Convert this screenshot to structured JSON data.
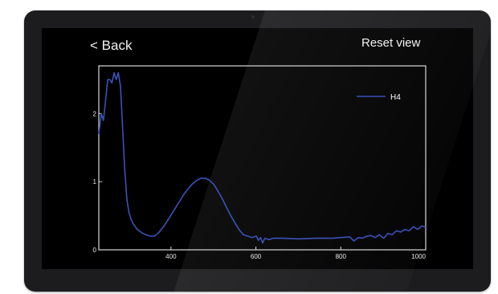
{
  "nav": {
    "back_label": "< Back",
    "reset_label": "Reset view"
  },
  "colors": {
    "line": "#3a52b8",
    "axis": "#d8d8d8",
    "background": "#000000"
  },
  "chart_data": {
    "type": "line",
    "title": "",
    "xlabel": "",
    "ylabel": "",
    "xlim": [
      230,
      1000
    ],
    "ylim": [
      0,
      2.7
    ],
    "x_ticks": [
      "400",
      "600",
      "800",
      "1000"
    ],
    "x_tick_values": [
      400,
      600,
      800,
      1000
    ],
    "y_ticks": [
      "0",
      "1",
      "2"
    ],
    "y_tick_values": [
      0,
      1,
      2
    ],
    "grid": false,
    "legend": "top-right",
    "series": [
      {
        "name": "H4",
        "x": [
          230,
          236,
          241,
          246,
          251,
          256,
          261,
          266,
          271,
          276,
          281,
          286,
          291,
          296,
          301,
          306,
          311,
          321,
          331,
          341,
          351,
          361,
          371,
          381,
          391,
          401,
          411,
          421,
          431,
          441,
          451,
          461,
          471,
          481,
          491,
          501,
          511,
          521,
          531,
          541,
          551,
          561,
          571,
          581,
          591,
          601,
          606,
          611,
          616,
          621,
          631,
          641,
          661,
          701,
          741,
          781,
          801,
          821,
          831,
          841,
          851,
          861,
          871,
          881,
          891,
          901,
          911,
          921,
          931,
          941,
          951,
          961,
          971,
          981,
          991,
          1000
        ],
        "y": [
          1.7,
          2.0,
          1.9,
          2.2,
          2.5,
          2.5,
          2.45,
          2.6,
          2.5,
          2.6,
          2.4,
          1.8,
          1.2,
          0.75,
          0.55,
          0.45,
          0.38,
          0.3,
          0.25,
          0.22,
          0.2,
          0.2,
          0.25,
          0.33,
          0.42,
          0.52,
          0.62,
          0.72,
          0.82,
          0.9,
          0.97,
          1.02,
          1.05,
          1.05,
          1.02,
          0.96,
          0.86,
          0.75,
          0.62,
          0.5,
          0.39,
          0.29,
          0.22,
          0.2,
          0.18,
          0.2,
          0.14,
          0.18,
          0.1,
          0.17,
          0.15,
          0.17,
          0.17,
          0.16,
          0.17,
          0.17,
          0.18,
          0.19,
          0.13,
          0.18,
          0.17,
          0.2,
          0.21,
          0.18,
          0.22,
          0.17,
          0.24,
          0.22,
          0.28,
          0.26,
          0.3,
          0.28,
          0.34,
          0.3,
          0.35,
          0.33
        ]
      }
    ]
  }
}
